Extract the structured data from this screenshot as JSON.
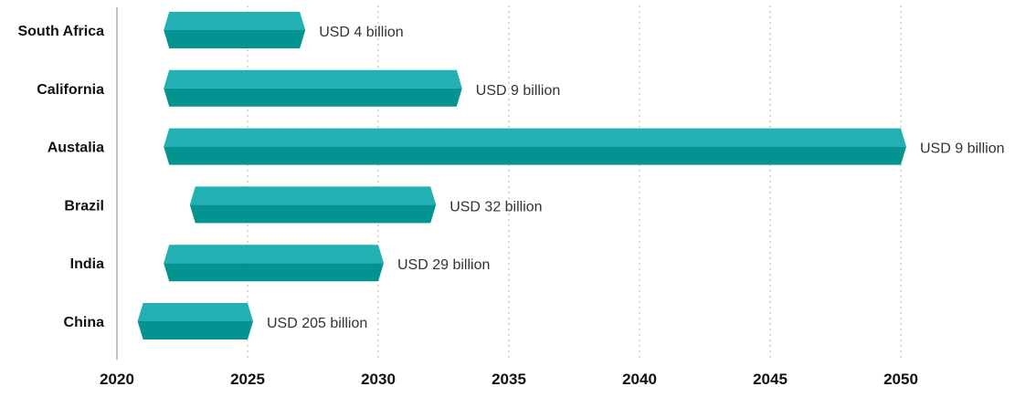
{
  "chart_data": {
    "type": "bar",
    "orientation": "horizontal",
    "categories": [
      "South Africa",
      "California",
      "Austalia",
      "Brazil",
      "India",
      "China"
    ],
    "series": [
      {
        "start": [
          2022,
          2022,
          2022,
          2023,
          2022,
          2021
        ],
        "end": [
          2027,
          2033,
          2050,
          2032,
          2030,
          2025
        ],
        "labels": [
          "USD 4 billion",
          "USD 9 billion",
          "USD 9 billion",
          "USD 32 billion",
          "USD 29 billion",
          "USD 205 billion"
        ]
      }
    ],
    "x_ticks": [
      "2020",
      "2025",
      "2030",
      "2035",
      "2040",
      "2045",
      "2050"
    ],
    "xlim": [
      2020,
      2050
    ],
    "grid": true,
    "colors": {
      "bar_top": "#22b0b2",
      "bar_bottom": "#039391",
      "grid": "#b5b5b5",
      "axis": "#8a8a8a"
    }
  }
}
